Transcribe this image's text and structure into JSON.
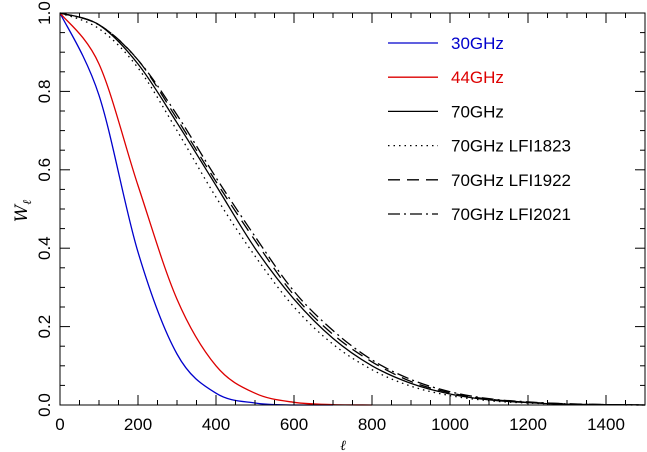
{
  "chart_data": {
    "type": "line",
    "title": "",
    "xlabel": "ℓ",
    "ylabel": "W",
    "ylabel_sub": "ℓ",
    "xlim": [
      0,
      1500
    ],
    "ylim": [
      0.0,
      1.0
    ],
    "x_ticks": [
      "0",
      "200",
      "400",
      "600",
      "800",
      "1000",
      "1200",
      "1400"
    ],
    "y_ticks": [
      "0.0",
      "0.2",
      "0.4",
      "0.6",
      "0.8",
      "1.0"
    ],
    "grid": false,
    "legend_position": "top-right",
    "x": [
      0,
      100,
      200,
      300,
      400,
      500,
      600,
      700,
      800,
      900,
      1000,
      1100,
      1200,
      1300,
      1400,
      1500
    ],
    "series": [
      {
        "name": "30GHz",
        "color": "#0000cc",
        "dash": "solid",
        "values": [
          1.0,
          0.79,
          0.39,
          0.13,
          0.03,
          0.005,
          0.0,
          0.0,
          null,
          null,
          null,
          null,
          null,
          null,
          null,
          null
        ]
      },
      {
        "name": "44GHz",
        "color": "#dd0000",
        "dash": "solid",
        "values": [
          1.0,
          0.87,
          0.56,
          0.27,
          0.1,
          0.03,
          0.007,
          0.001,
          0.0,
          null,
          null,
          null,
          null,
          null,
          null,
          null
        ]
      },
      {
        "name": "70GHz",
        "color": "#000000",
        "dash": "solid",
        "values": [
          1.0,
          0.97,
          0.87,
          0.72,
          0.56,
          0.4,
          0.27,
          0.17,
          0.1,
          0.055,
          0.028,
          0.013,
          0.006,
          0.002,
          0.001,
          0.0
        ]
      },
      {
        "name": "70GHz LFI1823",
        "color": "#000000",
        "dash": "dotted",
        "values": [
          1.0,
          0.96,
          0.86,
          0.7,
          0.53,
          0.38,
          0.25,
          0.155,
          0.09,
          0.048,
          0.024,
          0.011,
          0.005,
          0.002,
          0.0005,
          0.0
        ]
      },
      {
        "name": "70GHz LFI1922",
        "color": "#000000",
        "dash": "dashed",
        "values": [
          1.0,
          0.97,
          0.88,
          0.73,
          0.57,
          0.42,
          0.28,
          0.18,
          0.11,
          0.06,
          0.031,
          0.015,
          0.007,
          0.003,
          0.001,
          0.0
        ]
      },
      {
        "name": "70GHz LFI2021",
        "color": "#000000",
        "dash": "dashdot",
        "values": [
          1.0,
          0.97,
          0.88,
          0.74,
          0.58,
          0.43,
          0.29,
          0.19,
          0.115,
          0.065,
          0.034,
          0.016,
          0.008,
          0.003,
          0.001,
          0.0
        ]
      }
    ]
  }
}
